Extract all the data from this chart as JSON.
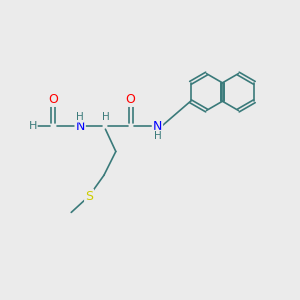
{
  "background_color": "#ebebeb",
  "bond_color": "#3a7a7a",
  "atom_colors": {
    "O": "#ff0000",
    "N": "#0000ff",
    "S": "#cccc00",
    "H": "#3a7a7a"
  },
  "lw": 1.2,
  "figsize": [
    3.0,
    3.0
  ],
  "dpi": 100,
  "xlim": [
    0,
    10
  ],
  "ylim": [
    0,
    10
  ]
}
